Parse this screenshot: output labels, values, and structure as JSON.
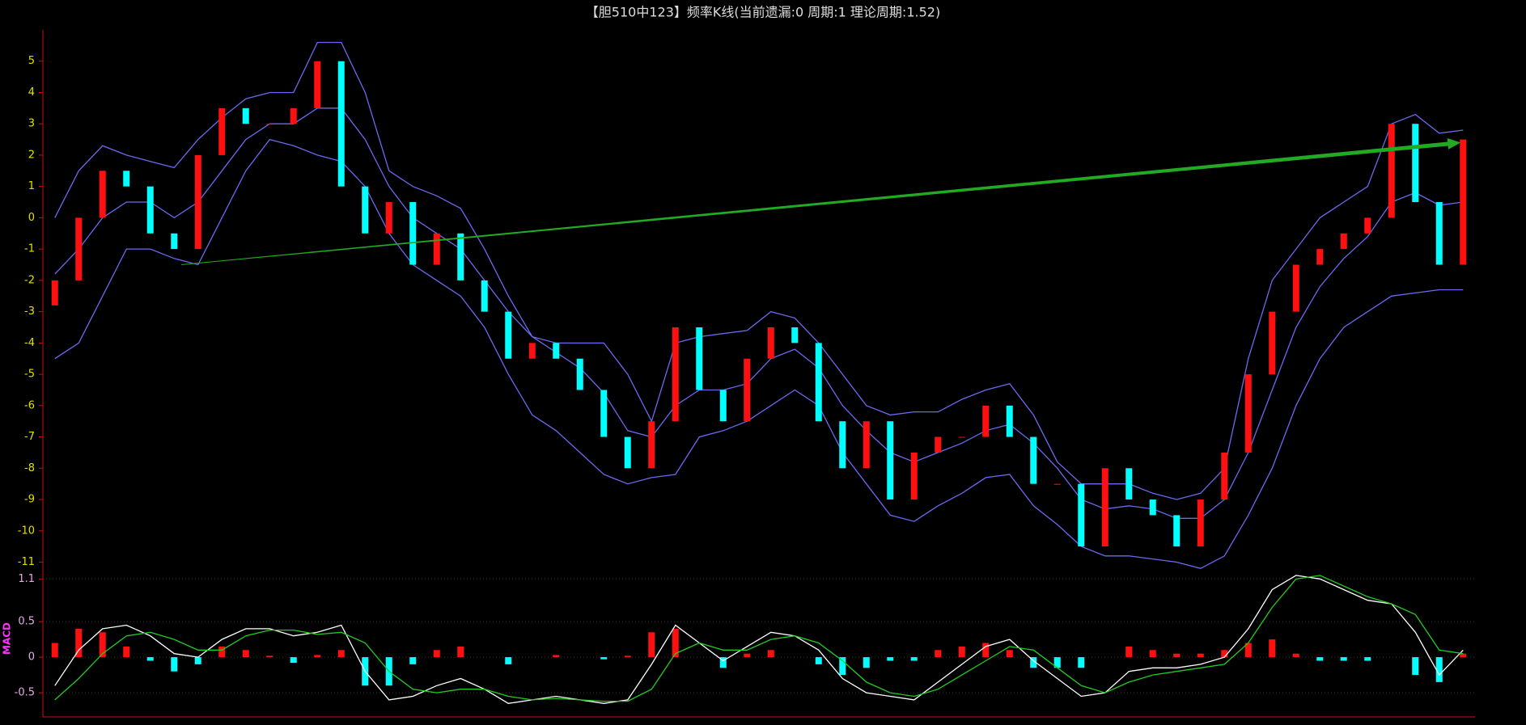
{
  "chart_data": [
    {
      "type": "candlestick",
      "title": "【胆510中123】频率K线(当前遗漏:0 周期:1 理论周期:1.52)",
      "up_color": "#ff1010",
      "down_color": "#00ffff",
      "open": [
        -2.8,
        -2,
        0,
        1.5,
        1,
        -0.5,
        -1,
        2,
        3.5,
        3,
        3,
        3.5,
        5,
        1,
        -0.5,
        0.5,
        -1.5,
        -0.5,
        -2,
        -3,
        -4.5,
        -4,
        -4.5,
        -5.5,
        -7,
        -8,
        -6.5,
        -3.5,
        -5.5,
        -6.5,
        -4.5,
        -3.5,
        -4,
        -6.5,
        -8,
        -6.5,
        -9,
        -7.5,
        -7,
        -7,
        -6,
        -7,
        -8.5,
        -8.5,
        -10.5,
        -8,
        -9,
        -9.5,
        -10.5,
        -9,
        -7.5,
        -5,
        -3,
        -1.5,
        -1,
        -0.5,
        0,
        3,
        0.5,
        -1.5
      ],
      "close": [
        -2,
        0,
        1.5,
        1,
        -0.5,
        -1,
        2,
        3.5,
        3,
        3,
        3.5,
        5,
        1,
        -0.5,
        0.5,
        -1.5,
        -0.5,
        -2,
        -3,
        -4.5,
        -4,
        -4.5,
        -5.5,
        -7,
        -8,
        -6.5,
        -3.5,
        -5.5,
        -6.5,
        -4.5,
        -3.5,
        -4,
        -6.5,
        -8,
        -6.5,
        -9,
        -7.5,
        -7,
        -7,
        -6,
        -7,
        -8.5,
        -8.5,
        -10.5,
        -8,
        -9,
        -9.5,
        -10.5,
        -9,
        -7.5,
        -5,
        -3,
        -1.5,
        -1,
        -0.5,
        0,
        3,
        0.5,
        -1.5,
        2.5
      ],
      "series": [
        {
          "color": "#6a6af0",
          "values": [
            0,
            1.5,
            2.3,
            2,
            1.8,
            1.6,
            2.5,
            3.2,
            3.8,
            4,
            4,
            5.6,
            5.6,
            4,
            1.5,
            1,
            0.7,
            0.3,
            -1,
            -2.5,
            -3.8,
            -4,
            -4,
            -4,
            -5,
            -6.5,
            -4,
            -3.8,
            -3.7,
            -3.6,
            -3,
            -3.2,
            -4,
            -5,
            -6,
            -6.3,
            -6.2,
            -6.2,
            -5.8,
            -5.5,
            -5.3,
            -6.3,
            -7.8,
            -8.5,
            -8.5,
            -8.5,
            -8.8,
            -9,
            -8.8,
            -8,
            -4.5,
            -2,
            -1,
            0,
            0.5,
            1,
            3,
            3.3,
            2.7,
            2.8
          ]
        },
        {
          "color": "#6a6af0",
          "values": [
            -1.8,
            -1,
            0,
            0.5,
            0.5,
            0,
            0.5,
            1.5,
            2.5,
            3,
            3,
            3.5,
            3.5,
            2.5,
            1,
            0,
            -0.5,
            -1,
            -2,
            -3,
            -3.8,
            -4.3,
            -4.8,
            -5.6,
            -6.8,
            -7,
            -6,
            -5.5,
            -5.5,
            -5.3,
            -4.5,
            -4.2,
            -4.8,
            -6,
            -6.8,
            -7.5,
            -7.8,
            -7.5,
            -7.2,
            -6.8,
            -6.6,
            -7.2,
            -8,
            -9,
            -9.3,
            -9.2,
            -9.3,
            -9.6,
            -9.6,
            -9,
            -7.5,
            -5.5,
            -3.5,
            -2.2,
            -1.3,
            -0.6,
            0.5,
            0.8,
            0.4,
            0.5
          ]
        },
        {
          "color": "#6a6af0",
          "values": [
            -4.5,
            -4,
            -2.5,
            -1,
            -1,
            -1.3,
            -1.5,
            0,
            1.5,
            2.5,
            2.3,
            2,
            1.8,
            1,
            -0.5,
            -1.5,
            -2,
            -2.5,
            -3.5,
            -5,
            -6.3,
            -6.8,
            -7.5,
            -8.2,
            -8.5,
            -8.3,
            -8.2,
            -7,
            -6.8,
            -6.5,
            -6,
            -5.5,
            -6,
            -7.5,
            -8.5,
            -9.5,
            -9.7,
            -9.2,
            -8.8,
            -8.3,
            -8.2,
            -9.2,
            -9.8,
            -10.5,
            -10.8,
            -10.8,
            -10.9,
            -11,
            -11.2,
            -10.8,
            -9.5,
            -8,
            -6,
            -4.5,
            -3.5,
            -3,
            -2.5,
            -2.4,
            -2.3,
            -2.3
          ]
        }
      ],
      "arrow": {
        "x": [
          5.3,
          58.9
        ],
        "y": [
          -1.5,
          2.4
        ],
        "color": "#22aa22"
      },
      "ylim": [
        -11.4,
        6
      ],
      "yticks": [
        -11,
        -10,
        -9,
        -8,
        -7,
        -6,
        -5,
        -4,
        -3,
        -2,
        -1,
        0,
        1,
        2,
        3,
        4,
        5
      ]
    },
    {
      "type": "macd",
      "label": "MACD",
      "up_color": "#ff1010",
      "down_color": "#00ffff",
      "values": [
        0.2,
        0.4,
        0.35,
        0.15,
        -0.05,
        -0.2,
        -0.1,
        0.15,
        0.1,
        0.02,
        -0.08,
        0.03,
        0.1,
        -0.4,
        -0.4,
        -0.1,
        0.1,
        0.15,
        0,
        -0.1,
        0,
        0.03,
        0,
        -0.03,
        0.02,
        0.35,
        0.4,
        0,
        -0.15,
        0.05,
        0.1,
        0,
        -0.1,
        -0.25,
        -0.15,
        -0.05,
        -0.05,
        0.1,
        0.15,
        0.2,
        0.1,
        -0.15,
        -0.15,
        -0.15,
        0,
        0.15,
        0.1,
        0.05,
        0.05,
        0.1,
        0.2,
        0.25,
        0.05,
        -0.05,
        -0.05,
        -0.05,
        0,
        -0.25,
        -0.35,
        0.05
      ],
      "series": [
        {
          "color": "#ffffff",
          "values": [
            -0.4,
            0.1,
            0.4,
            0.45,
            0.3,
            0.05,
            0,
            0.25,
            0.4,
            0.4,
            0.3,
            0.35,
            0.45,
            -0.2,
            -0.6,
            -0.55,
            -0.4,
            -0.3,
            -0.45,
            -0.65,
            -0.6,
            -0.55,
            -0.6,
            -0.65,
            -0.6,
            -0.1,
            0.45,
            0.2,
            -0.05,
            0.15,
            0.35,
            0.3,
            0.1,
            -0.3,
            -0.5,
            -0.55,
            -0.6,
            -0.35,
            -0.1,
            0.15,
            0.25,
            -0.05,
            -0.3,
            -0.55,
            -0.5,
            -0.2,
            -0.15,
            -0.15,
            -0.1,
            0,
            0.4,
            0.95,
            1.15,
            1.1,
            0.95,
            0.8,
            0.75,
            0.35,
            -0.25,
            0.1
          ]
        },
        {
          "color": "#22cc22",
          "values": [
            -0.6,
            -0.3,
            0.05,
            0.3,
            0.35,
            0.25,
            0.1,
            0.1,
            0.3,
            0.38,
            0.38,
            0.32,
            0.35,
            0.2,
            -0.2,
            -0.45,
            -0.5,
            -0.45,
            -0.45,
            -0.55,
            -0.6,
            -0.58,
            -0.6,
            -0.62,
            -0.62,
            -0.45,
            0.05,
            0.2,
            0.1,
            0.1,
            0.25,
            0.3,
            0.2,
            -0.05,
            -0.35,
            -0.5,
            -0.55,
            -0.45,
            -0.25,
            -0.05,
            0.15,
            0.1,
            -0.15,
            -0.4,
            -0.5,
            -0.35,
            -0.25,
            -0.2,
            -0.15,
            -0.1,
            0.2,
            0.7,
            1.1,
            1.15,
            1,
            0.85,
            0.75,
            0.6,
            0.1,
            0.05
          ]
        }
      ],
      "ylim": [
        -0.84,
        1.16
      ],
      "yticks": [
        -0.5,
        0,
        0.5,
        1.1
      ],
      "grid": true
    }
  ]
}
